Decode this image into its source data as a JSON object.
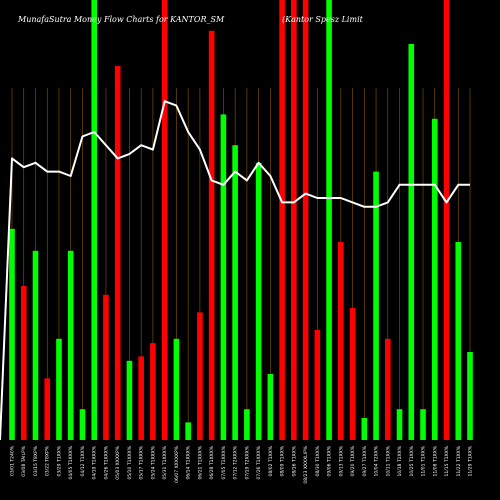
{
  "chart_data": {
    "type": "bar",
    "title_left": "MunafaSutra  Money Flow  Charts for KANTOR_SM",
    "title_right": "(Kantor Spesz   Limit",
    "colors": {
      "up": "#00ff00",
      "down": "#ff0000",
      "line": "#ffffff",
      "grid": "#8b5a00",
      "background": "#000000"
    },
    "ylim": [
      0,
      100
    ],
    "categories": [
      "03/01 T240%",
      "03/08 TAILP%",
      "03/15 T8XP%",
      "03/22 T8XP%",
      "03/29 T1XX%",
      "04/05 T1XXX%",
      "04/12 T1XX%",
      "04/19 T1XXX%",
      "04/26 T1XXX%",
      "05/03 XXXXP%",
      "05/10 T1XXX%",
      "05/17 T1XXX%",
      "05/24 T1XXX%",
      "05/31 T1XXX%",
      "06/07 XXXXXP%",
      "06/14 T1XXX%",
      "06/21 T1XXX%",
      "06/28 T1XXX%",
      "07/05 T1XXX%",
      "07/12 T2XXX%",
      "07/19 T2XXX%",
      "07/26 T1XXX%",
      "08/02 T1XX%",
      "08/09 T1XX%",
      "08/16 T1XX%",
      "08/23 XXXXLIP%",
      "08/30 T1XX%",
      "09/06 T1XX%",
      "09/13 T1XX%",
      "09/20 T1XX%",
      "09/27 T1XX%",
      "10/04 T2XX%",
      "10/11 T1XX%",
      "10/18 T1XX%",
      "10/25 T1XX%",
      "11/01 T1XX%",
      "11/08 T1XX%",
      "11/15 T1XX%",
      "11/22 T1XX%",
      "11/29 T1XX%"
    ],
    "series": [
      {
        "values": [
          48,
          35,
          43,
          14,
          23,
          43,
          7,
          100,
          33,
          85,
          18,
          19,
          22,
          100,
          23,
          4,
          29,
          93,
          74,
          67,
          7,
          63,
          15,
          100,
          100,
          100,
          25,
          100,
          45,
          30,
          5,
          61,
          23,
          7,
          90,
          7,
          73,
          100,
          45,
          20
        ]
      },
      {
        "values": [
          64,
          62,
          63,
          61,
          61,
          60,
          69,
          70,
          67,
          64,
          65,
          67,
          66,
          77,
          76,
          70,
          66,
          59,
          58,
          61,
          59,
          63,
          60,
          54,
          54,
          56,
          55,
          55,
          55,
          54,
          53,
          53,
          54,
          58,
          58,
          58,
          58,
          54,
          58,
          58
        ]
      }
    ],
    "bar_colors": [
      "up",
      "down",
      "up",
      "down",
      "up",
      "up",
      "up",
      "up",
      "down",
      "down",
      "up",
      "down",
      "down",
      "down",
      "up",
      "up",
      "down",
      "down",
      "up",
      "up",
      "up",
      "up",
      "up",
      "down",
      "down",
      "down",
      "down",
      "up",
      "down",
      "down",
      "up",
      "up",
      "down",
      "up",
      "up",
      "up",
      "up",
      "down",
      "up",
      "up"
    ]
  }
}
